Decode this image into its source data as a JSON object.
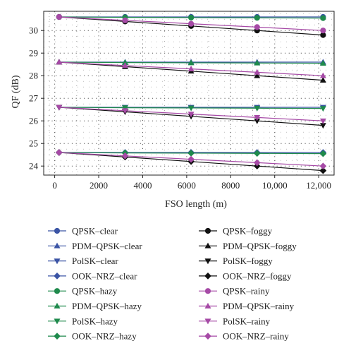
{
  "chart_data": {
    "type": "line",
    "xlabel": "FSO length (m)",
    "ylabel": "QF (dB)",
    "xlim": [
      -500,
      12700
    ],
    "ylim": [
      23.6,
      30.85
    ],
    "x_ticks": [
      0,
      2000,
      4000,
      6000,
      8000,
      10000,
      12000
    ],
    "x_tick_labels": [
      "0",
      "2000",
      "4000",
      "6000",
      "8000",
      "10,000",
      "12,000"
    ],
    "y_ticks": [
      24,
      25,
      26,
      27,
      28,
      29,
      30
    ],
    "y_tick_labels": [
      "24",
      "25",
      "26",
      "27",
      "28",
      "29",
      "30"
    ],
    "grid": true,
    "grid_style": "dotted",
    "legend_position": "bottom",
    "legend_columns": 2,
    "x": [
      200,
      3200,
      6200,
      9200,
      12200
    ],
    "colors": {
      "clear": "#3b54a5",
      "hazy": "#1f8a4c",
      "foggy": "#111111",
      "rainy": "#a64aa6"
    },
    "series": [
      {
        "name": "QPSK–clear",
        "weather": "clear",
        "marker": "circle",
        "values": [
          30.6,
          30.6,
          30.6,
          30.6,
          30.6
        ]
      },
      {
        "name": "PDM–QPSK–clear",
        "weather": "clear",
        "marker": "triangle-up",
        "values": [
          28.6,
          28.6,
          28.6,
          28.6,
          28.6
        ]
      },
      {
        "name": "PolSK–clear",
        "weather": "clear",
        "marker": "triangle-down",
        "values": [
          26.6,
          26.6,
          26.6,
          26.6,
          26.6
        ]
      },
      {
        "name": "OOK–NRZ–clear",
        "weather": "clear",
        "marker": "diamond",
        "values": [
          24.6,
          24.6,
          24.6,
          24.6,
          24.6
        ]
      },
      {
        "name": "QPSK–hazy",
        "weather": "hazy",
        "marker": "circle",
        "values": [
          30.6,
          30.58,
          30.57,
          30.56,
          30.55
        ]
      },
      {
        "name": "PDM–QPSK–hazy",
        "weather": "hazy",
        "marker": "triangle-up",
        "values": [
          28.6,
          28.58,
          28.57,
          28.56,
          28.55
        ]
      },
      {
        "name": "PolSK–hazy",
        "weather": "hazy",
        "marker": "triangle-down",
        "values": [
          26.6,
          26.58,
          26.57,
          26.56,
          26.55
        ]
      },
      {
        "name": "OOK–NRZ–hazy",
        "weather": "hazy",
        "marker": "diamond",
        "values": [
          24.6,
          24.58,
          24.57,
          24.56,
          24.55
        ]
      },
      {
        "name": "QPSK–foggy",
        "weather": "foggy",
        "marker": "circle",
        "values": [
          30.6,
          30.4,
          30.2,
          30.0,
          29.8
        ]
      },
      {
        "name": "PDM–QPSK–foggy",
        "weather": "foggy",
        "marker": "triangle-up",
        "values": [
          28.6,
          28.4,
          28.2,
          28.0,
          27.8
        ]
      },
      {
        "name": "PolSK–foggy",
        "weather": "foggy",
        "marker": "triangle-down",
        "values": [
          26.6,
          26.4,
          26.2,
          26.0,
          25.8
        ]
      },
      {
        "name": "OOK–NRZ–foggy",
        "weather": "foggy",
        "marker": "diamond",
        "values": [
          24.6,
          24.4,
          24.2,
          24.0,
          23.8
        ]
      },
      {
        "name": "QPSK–rainy",
        "weather": "rainy",
        "marker": "circle",
        "values": [
          30.6,
          30.45,
          30.3,
          30.15,
          30.0
        ]
      },
      {
        "name": "PDM–QPSK–rainy",
        "weather": "rainy",
        "marker": "triangle-up",
        "values": [
          28.6,
          28.45,
          28.3,
          28.15,
          28.0
        ]
      },
      {
        "name": "PolSK–rainy",
        "weather": "rainy",
        "marker": "triangle-down",
        "values": [
          26.6,
          26.45,
          26.3,
          26.15,
          26.0
        ]
      },
      {
        "name": "OOK–NRZ–rainy",
        "weather": "rainy",
        "marker": "diamond",
        "values": [
          24.6,
          24.45,
          24.3,
          24.15,
          24.0
        ]
      }
    ]
  }
}
